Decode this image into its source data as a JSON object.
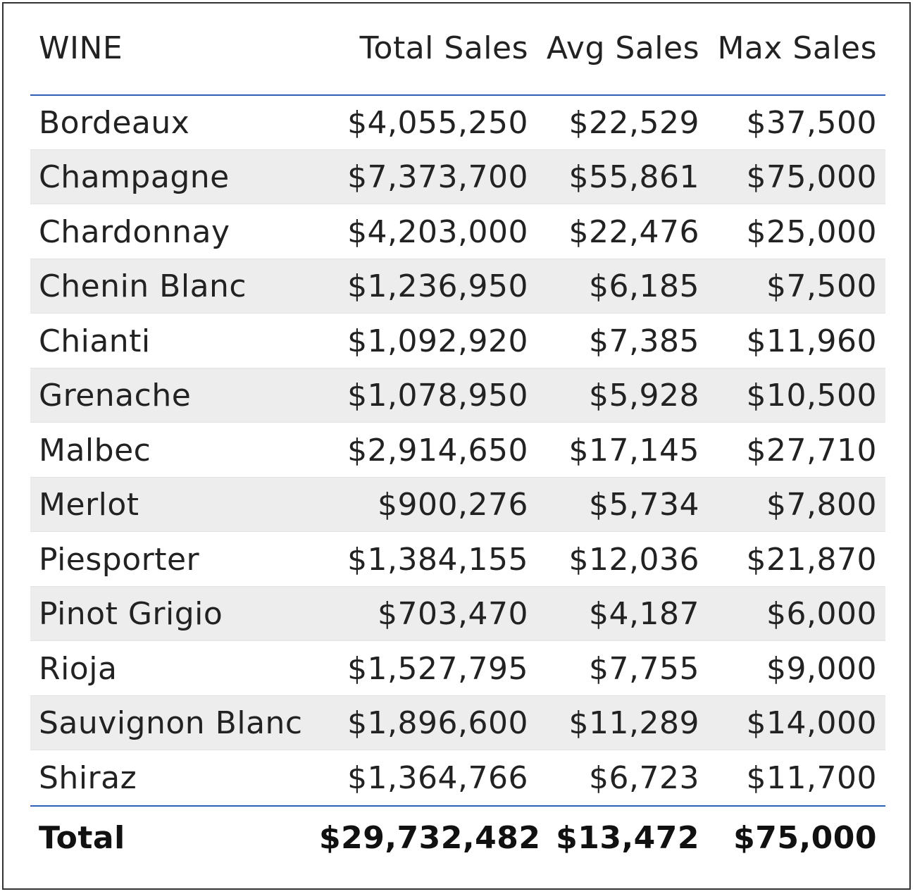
{
  "table": {
    "columns": [
      "WINE",
      "Total Sales",
      "Avg Sales",
      "Max Sales"
    ],
    "rows": [
      {
        "wine": "Bordeaux",
        "total_sales": "$4,055,250",
        "avg_sales": "$22,529",
        "max_sales": "$37,500"
      },
      {
        "wine": "Champagne",
        "total_sales": "$7,373,700",
        "avg_sales": "$55,861",
        "max_sales": "$75,000"
      },
      {
        "wine": "Chardonnay",
        "total_sales": "$4,203,000",
        "avg_sales": "$22,476",
        "max_sales": "$25,000"
      },
      {
        "wine": "Chenin Blanc",
        "total_sales": "$1,236,950",
        "avg_sales": "$6,185",
        "max_sales": "$7,500"
      },
      {
        "wine": "Chianti",
        "total_sales": "$1,092,920",
        "avg_sales": "$7,385",
        "max_sales": "$11,960"
      },
      {
        "wine": "Grenache",
        "total_sales": "$1,078,950",
        "avg_sales": "$5,928",
        "max_sales": "$10,500"
      },
      {
        "wine": "Malbec",
        "total_sales": "$2,914,650",
        "avg_sales": "$17,145",
        "max_sales": "$27,710"
      },
      {
        "wine": "Merlot",
        "total_sales": "$900,276",
        "avg_sales": "$5,734",
        "max_sales": "$7,800"
      },
      {
        "wine": "Piesporter",
        "total_sales": "$1,384,155",
        "avg_sales": "$12,036",
        "max_sales": "$21,870"
      },
      {
        "wine": "Pinot Grigio",
        "total_sales": "$703,470",
        "avg_sales": "$4,187",
        "max_sales": "$6,000"
      },
      {
        "wine": "Rioja",
        "total_sales": "$1,527,795",
        "avg_sales": "$7,755",
        "max_sales": "$9,000"
      },
      {
        "wine": "Sauvignon Blanc",
        "total_sales": "$1,896,600",
        "avg_sales": "$11,289",
        "max_sales": "$14,000"
      },
      {
        "wine": "Shiraz",
        "total_sales": "$1,364,766",
        "avg_sales": "$6,723",
        "max_sales": "$11,700"
      }
    ],
    "total": {
      "wine": "Total",
      "total_sales": "$29,732,482",
      "avg_sales": "$13,472",
      "max_sales": "$75,000"
    }
  },
  "colors": {
    "accent_line": "#2f5fb5",
    "alt_row": "#ededed",
    "text": "#222222"
  }
}
